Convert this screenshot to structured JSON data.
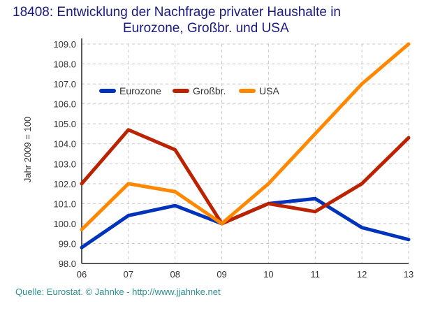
{
  "chart_data": {
    "type": "line",
    "title": "18408: Entwicklung der Nachfrage privater Haushalte in",
    "subtitle": "Eurozone, Großbr. und USA",
    "xlabel": "",
    "ylabel": "Jahr 2009 = 100",
    "x": [
      "06",
      "07",
      "08",
      "09",
      "10",
      "11",
      "12",
      "13"
    ],
    "ylim": [
      98.0,
      109.0
    ],
    "yticks": [
      "98.0",
      "99.0",
      "100.0",
      "101.0",
      "102.0",
      "103.0",
      "104.0",
      "105.0",
      "106.0",
      "107.0",
      "108.0",
      "109.0"
    ],
    "grid": true,
    "legend_position": "top-left",
    "series": [
      {
        "name": "Eurozone",
        "color": "#0033bb",
        "values": [
          98.8,
          100.4,
          100.9,
          100.0,
          101.0,
          101.25,
          99.8,
          99.2
        ]
      },
      {
        "name": "Großbr.",
        "color": "#bb2200",
        "values": [
          102.0,
          104.7,
          103.7,
          100.0,
          101.0,
          100.6,
          102.0,
          104.3
        ]
      },
      {
        "name": "USA",
        "color": "#ff8800",
        "values": [
          99.7,
          102.0,
          101.6,
          100.0,
          102.0,
          104.5,
          107.0,
          109.0
        ]
      }
    ],
    "source": "Quelle: Eurostat. © Jahnke - http://www.jjahnke.net"
  }
}
